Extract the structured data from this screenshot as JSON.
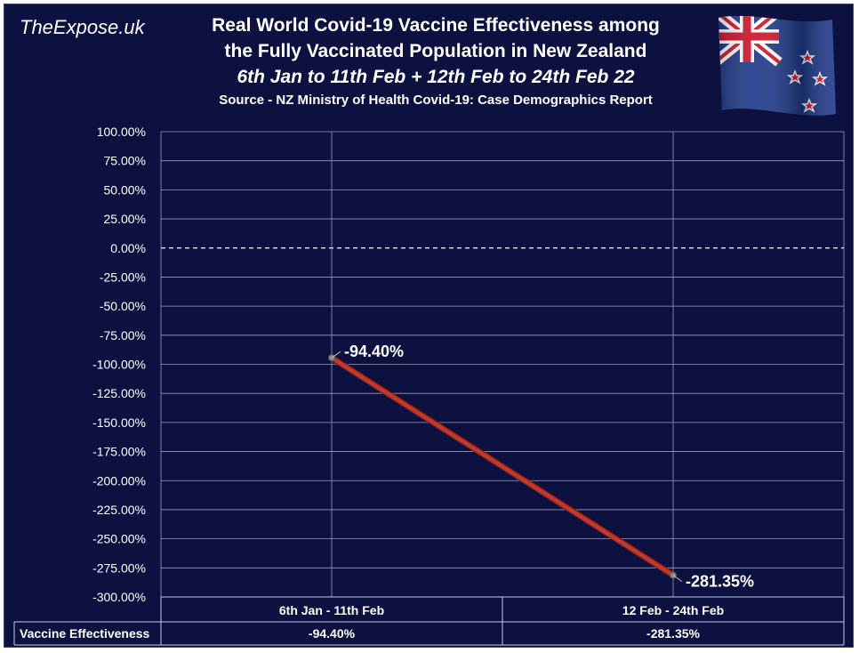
{
  "brand": "TheExpose.uk",
  "title": {
    "line1": "Real World Covid-19 Vaccine Effectiveness among",
    "line2": "the Fully Vaccinated Population in New Zealand",
    "line3": "6th Jan to 11th Feb + 12th Feb to 24th Feb 22",
    "line4": "Source - NZ Ministry of Health Covid-19: Case Demographics Report"
  },
  "flag_icon": "new-zealand-flag",
  "colors": {
    "background": "#0d1140",
    "gridline": "#9a9cb8",
    "series_line": "#c0392b",
    "text": "#ffffff"
  },
  "chart_data": {
    "type": "line",
    "categories": [
      "6th Jan - 11th Feb",
      "12 Feb - 24th Feb"
    ],
    "series": [
      {
        "name": "Vaccine Effectiveness",
        "values": [
          -94.4,
          -281.35
        ]
      }
    ],
    "data_labels": [
      "-94.40%",
      "-281.35%"
    ],
    "ylim": [
      -300,
      100
    ],
    "ytick_step": 25,
    "ytick_labels": [
      "100.00%",
      "75.00%",
      "50.00%",
      "25.00%",
      "0.00%",
      "-25.00%",
      "-50.00%",
      "-75.00%",
      "-100.00%",
      "-125.00%",
      "-150.00%",
      "-175.00%",
      "-200.00%",
      "-225.00%",
      "-250.00%",
      "-275.00%",
      "-300.00%"
    ],
    "zero_line": "dashed",
    "grid": true,
    "data_table": {
      "row_label": "Vaccine Effectiveness",
      "values": [
        "-94.40%",
        "-281.35%"
      ]
    }
  }
}
